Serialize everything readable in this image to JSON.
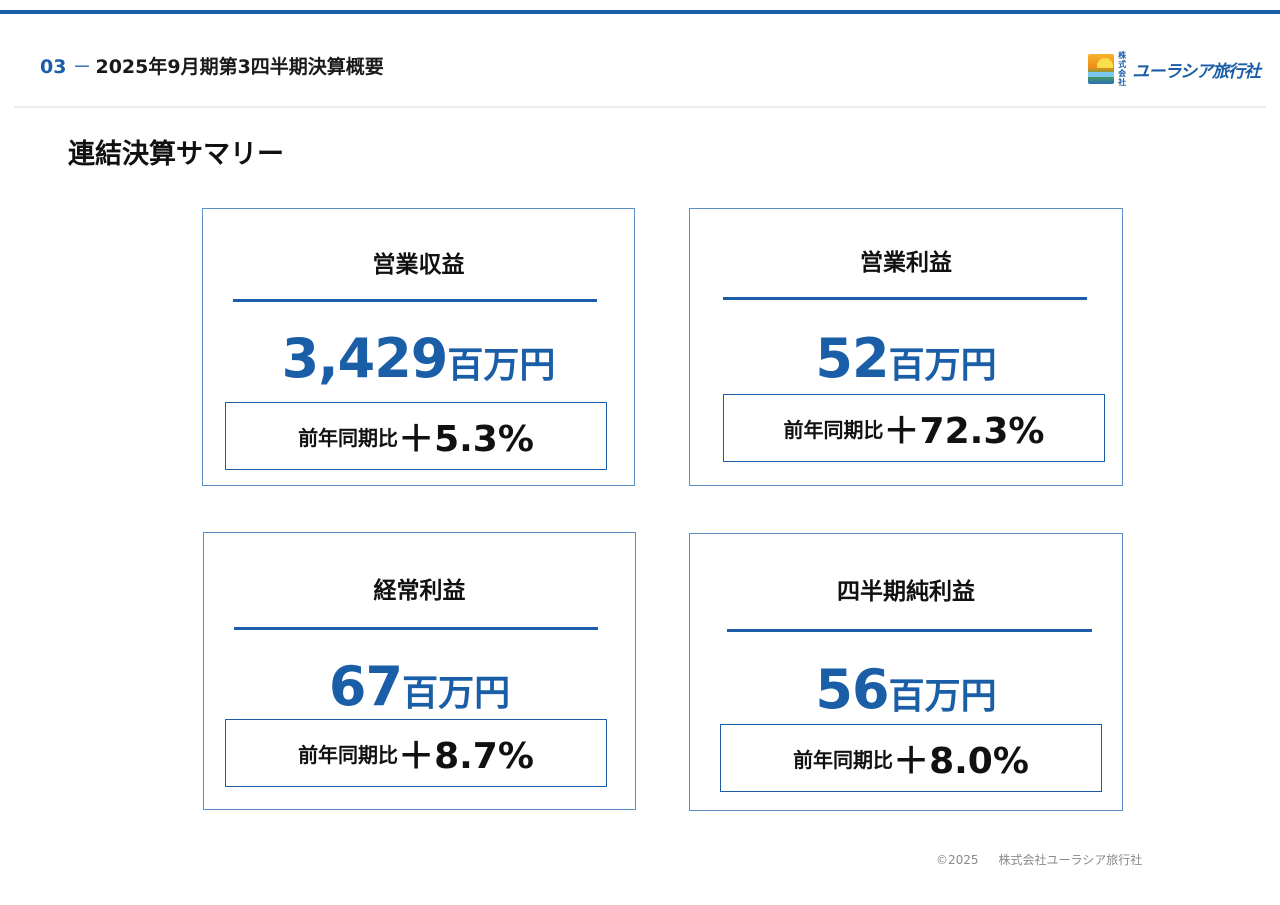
{
  "header": {
    "section_number": "03",
    "section_dash": "－",
    "section_title": "2025年9月期第3四半期決算概要",
    "logo": {
      "small_top": "株式",
      "small_bottom": "会社",
      "name": "ユーラシア旅行社"
    }
  },
  "page_title": "連結決算サマリー",
  "cards": [
    {
      "label": "営業収益",
      "value": "3,429",
      "unit": "百万円",
      "yoy_label": "前年同期比",
      "yoy_value": "＋5.3%"
    },
    {
      "label": "営業利益",
      "value": "52",
      "unit": "百万円",
      "yoy_label": "前年同期比",
      "yoy_value": "＋72.3%"
    },
    {
      "label": "経常利益",
      "value": "67",
      "unit": "百万円",
      "yoy_label": "前年同期比",
      "yoy_value": "＋8.7%"
    },
    {
      "label": "四半期純利益",
      "value": "56",
      "unit": "百万円",
      "yoy_label": "前年同期比",
      "yoy_value": "＋8.0%"
    }
  ],
  "footer": {
    "copyright": "©2025",
    "company": "株式会社ユーラシア旅行社"
  },
  "colors": {
    "accent": "#1a5ea8",
    "card_border": "#5b8fc5",
    "text": "#111111",
    "footer_text": "#8a8a8a"
  }
}
